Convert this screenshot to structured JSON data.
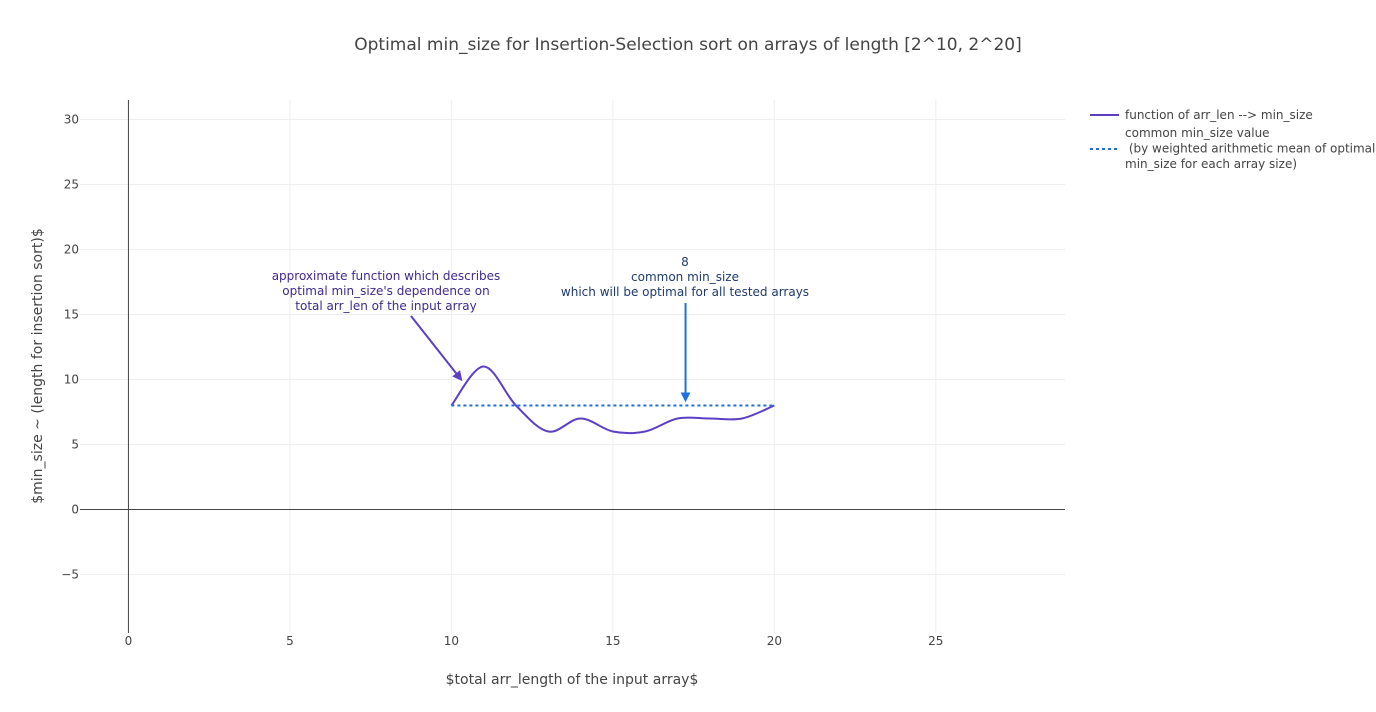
{
  "chart_data": {
    "type": "line",
    "title": "Optimal min_size for Insertion-Selection sort on arrays of length [2^10, 2^20]",
    "xlabel": "$total arr_length of the input array$",
    "ylabel": "$min_size ~ (length for insertion sort)$",
    "xlim": [
      -1.5,
      29
    ],
    "ylim": [
      -9.5,
      31.5
    ],
    "x_ticks": [
      0,
      5,
      10,
      15,
      20,
      25
    ],
    "y_ticks": [
      -5,
      0,
      5,
      10,
      15,
      20,
      25,
      30
    ],
    "x_tick_labels": [
      "0",
      "5",
      "10",
      "15",
      "20",
      "25"
    ],
    "y_tick_labels": [
      "−5",
      "0",
      "5",
      "10",
      "15",
      "20",
      "25",
      "30"
    ],
    "grid": true,
    "legend_position": "right",
    "series": [
      {
        "name": "function of arr_len --> min_size",
        "color": "#5c3fc4",
        "style": "solid-smooth",
        "x": [
          10,
          11,
          12,
          13,
          14,
          15,
          16,
          17,
          18,
          19,
          20
        ],
        "y": [
          8,
          11,
          8,
          6,
          7,
          6,
          6,
          7,
          7,
          7,
          8
        ]
      },
      {
        "name_lines": [
          "common min_size value",
          " (by weighted arithmetic mean of optimal",
          "min_size for each array size)"
        ],
        "color": "#1f6fe0",
        "style": "dotted",
        "x": [
          10,
          20
        ],
        "y": [
          8,
          8
        ]
      }
    ],
    "annotations": [
      {
        "lines": [
          "approximate function which describes",
          "optimal min_size's dependence on",
          "total arr_len of the input array"
        ],
        "color": "#3d2a8f",
        "arrow_color": "#5c3fc4",
        "point": [
          10.3,
          10
        ]
      },
      {
        "lines": [
          "8",
          "common min_size",
          "which will be optimal for all tested arrays"
        ],
        "color": "#1e3a6e",
        "arrow_color": "#1f6fe0",
        "point": [
          17.25,
          8.4
        ]
      }
    ]
  }
}
